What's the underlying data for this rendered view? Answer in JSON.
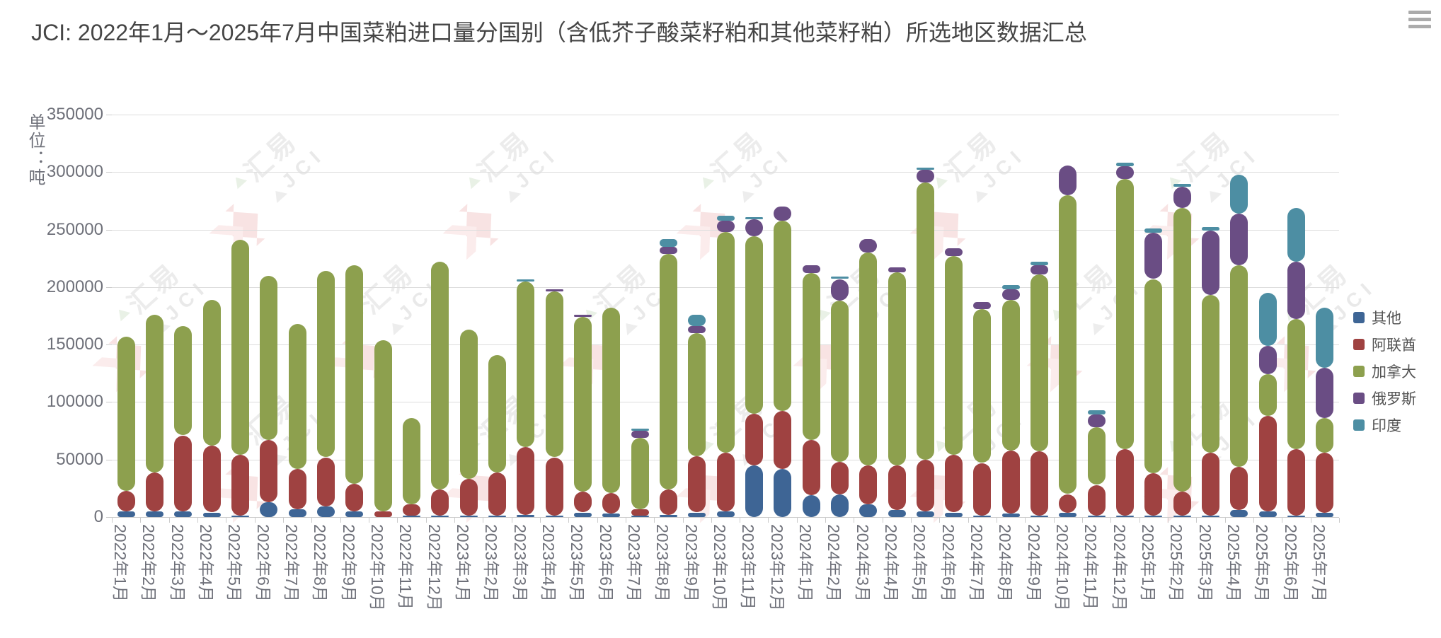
{
  "title": "JCI: 2022年1月～2025年7月中国菜粕进口量分国别（含低芥子酸菜籽粕和其他菜籽粕）所选地区数据汇总",
  "menu_icon": "hamburger-icon",
  "watermark": {
    "text_cn": "汇易",
    "text_en": "JCI"
  },
  "y_axis": {
    "name": "单位：吨",
    "ticks": [
      0,
      50000,
      100000,
      150000,
      200000,
      250000,
      300000,
      350000
    ]
  },
  "legend": {
    "items": [
      {
        "label": "其他",
        "color": "#3E6595"
      },
      {
        "label": "阿联酋",
        "color": "#9F4241"
      },
      {
        "label": "加拿大",
        "color": "#8DA04E"
      },
      {
        "label": "俄罗斯",
        "color": "#6A4D84"
      },
      {
        "label": "印度",
        "color": "#4D8EA3"
      }
    ]
  },
  "chart_data": {
    "type": "bar",
    "stacked": true,
    "title": "JCI: 2022年1月～2025年7月中国菜粕进口量分国别（含低芥子酸菜籽粕和其他菜籽粕）所选地区数据汇总",
    "xlabel": "",
    "ylabel": "单位：吨",
    "ylim": [
      0,
      350000
    ],
    "grid": true,
    "legend_position": "right",
    "categories": [
      "2022年1月",
      "2022年2月",
      "2022年3月",
      "2022年4月",
      "2022年5月",
      "2022年6月",
      "2022年7月",
      "2022年8月",
      "2022年9月",
      "2022年10月",
      "2022年11月",
      "2022年12月",
      "2023年1月",
      "2023年2月",
      "2023年3月",
      "2023年4月",
      "2023年5月",
      "2023年6月",
      "2023年7月",
      "2023年8月",
      "2023年9月",
      "2023年10月",
      "2023年11月",
      "2023年12月",
      "2024年1月",
      "2024年2月",
      "2024年3月",
      "2024年4月",
      "2024年5月",
      "2024年6月",
      "2024年7月",
      "2024年8月",
      "2024年9月",
      "2024年10月",
      "2024年11月",
      "2024年12月",
      "2025年1月",
      "2025年2月",
      "2025年3月",
      "2025年4月",
      "2025年5月",
      "2025年6月",
      "2025年7月"
    ],
    "series": [
      {
        "name": "其他",
        "color": "#3E6595",
        "values": [
          5000,
          5000,
          5000,
          4000,
          1000,
          13000,
          7000,
          9000,
          5000,
          0,
          1000,
          1000,
          1000,
          1000,
          2000,
          1000,
          4000,
          3000,
          1000,
          2000,
          4000,
          5000,
          45000,
          42000,
          19000,
          20000,
          11000,
          6000,
          5000,
          4000,
          1000,
          3000,
          1000,
          4000,
          1000,
          1000,
          1000,
          1000,
          1000,
          6000,
          5000,
          1000,
          4000
        ]
      },
      {
        "name": "阿联酋",
        "color": "#9F4241",
        "values": [
          18000,
          34000,
          66000,
          58000,
          53000,
          54000,
          35000,
          43000,
          24000,
          5000,
          10000,
          23000,
          32000,
          38000,
          59000,
          51000,
          18000,
          18000,
          6000,
          22000,
          49000,
          51000,
          45000,
          50000,
          48000,
          28000,
          34000,
          39000,
          45000,
          50000,
          46000,
          55000,
          56000,
          16000,
          27000,
          58000,
          37000,
          21000,
          55000,
          38000,
          83000,
          58000,
          52000
        ]
      },
      {
        "name": "加拿大",
        "color": "#8DA04E",
        "values": [
          134000,
          137000,
          95000,
          127000,
          187000,
          143000,
          126000,
          162000,
          190000,
          149000,
          75000,
          198000,
          130000,
          102000,
          144000,
          144000,
          152000,
          161000,
          62000,
          205000,
          107000,
          192000,
          154000,
          166000,
          145000,
          140000,
          185000,
          168000,
          241000,
          173000,
          134000,
          131000,
          154000,
          260000,
          50000,
          235000,
          169000,
          247000,
          137000,
          175000,
          36000,
          113000,
          30000
        ]
      },
      {
        "name": "俄罗斯",
        "color": "#6A4D84",
        "values": [
          0,
          0,
          0,
          0,
          0,
          0,
          0,
          0,
          0,
          0,
          0,
          0,
          0,
          0,
          0,
          2000,
          2000,
          0,
          6000,
          6000,
          6000,
          10000,
          15000,
          12000,
          7000,
          19000,
          12000,
          4000,
          11000,
          7000,
          6000,
          9000,
          8000,
          26000,
          11000,
          11000,
          40000,
          18000,
          56000,
          45000,
          25000,
          50000,
          44000
        ]
      },
      {
        "name": "印度",
        "color": "#4D8EA3",
        "values": [
          0,
          0,
          0,
          0,
          0,
          0,
          0,
          0,
          0,
          0,
          0,
          0,
          0,
          0,
          2000,
          0,
          0,
          0,
          2000,
          7000,
          10000,
          4000,
          2000,
          0,
          0,
          2000,
          0,
          0,
          2000,
          0,
          0,
          4000,
          3000,
          0,
          4000,
          3000,
          4000,
          3000,
          3000,
          34000,
          46000,
          47000,
          52000
        ]
      }
    ]
  }
}
